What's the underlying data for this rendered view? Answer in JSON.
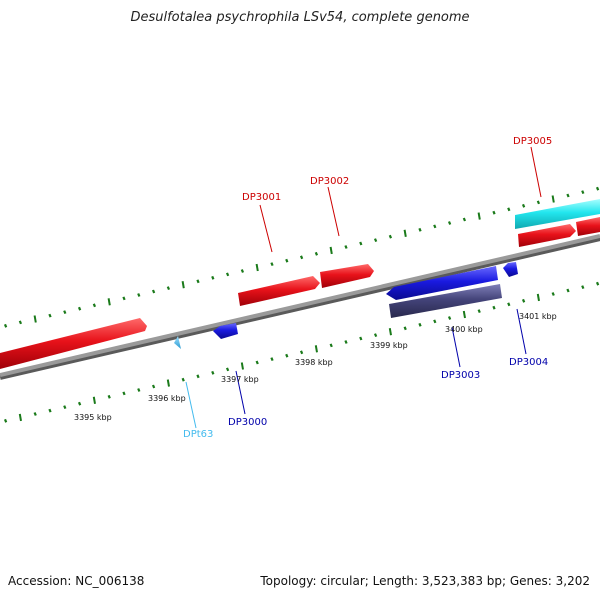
{
  "title": "Desulfotalea psychrophila LSv54, complete genome",
  "footer": {
    "accession": "Accession: NC_006138",
    "summary": "Topology: circular; Length: 3,523,383 bp; Genes: 3,202"
  },
  "colors": {
    "forward_cds": "#e8121a",
    "reverse_cds": "#1a1ae0",
    "reverse_pseudo": "#44447a",
    "rna": "#22e6ee",
    "trna": "#3cb8e8",
    "backbone": "#8a8a8a",
    "ticks": "#1a7a1a",
    "label_forward": "#cc0000",
    "label_reverse": "#0000aa",
    "label_trna": "#44bbee"
  },
  "ticks": [
    {
      "label": "3395 kbp"
    },
    {
      "label": "3396 kbp"
    },
    {
      "label": "3397 kbp"
    },
    {
      "label": "3398 kbp"
    },
    {
      "label": "3399 kbp"
    },
    {
      "label": "3400 kbp"
    },
    {
      "label": "3401 kbp"
    }
  ],
  "genes": [
    {
      "label": "DP3001",
      "strand": "+"
    },
    {
      "label": "DP3002",
      "strand": "+"
    },
    {
      "label": "DP3005",
      "strand": "+"
    },
    {
      "label": "DPt63",
      "strand": "-"
    },
    {
      "label": "DP3000",
      "strand": "-"
    },
    {
      "label": "DP3003",
      "strand": "-"
    },
    {
      "label": "DP3004",
      "strand": "-"
    }
  ]
}
